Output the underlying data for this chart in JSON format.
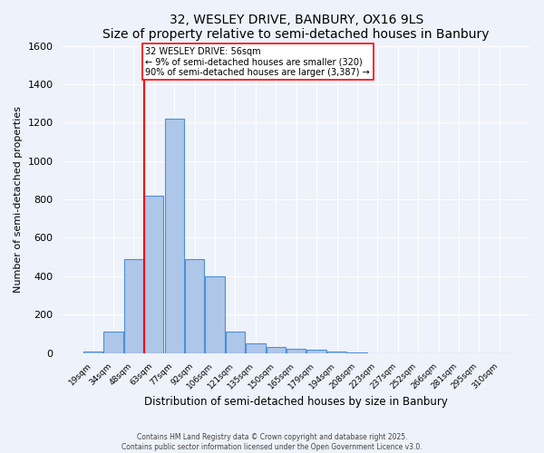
{
  "title": "32, WESLEY DRIVE, BANBURY, OX16 9LS",
  "subtitle": "Size of property relative to semi-detached houses in Banbury",
  "xlabel": "Distribution of semi-detached houses by size in Banbury",
  "ylabel": "Number of semi-detached properties",
  "bin_labels": [
    "19sqm",
    "34sqm",
    "48sqm",
    "63sqm",
    "77sqm",
    "92sqm",
    "106sqm",
    "121sqm",
    "135sqm",
    "150sqm",
    "165sqm",
    "179sqm",
    "194sqm",
    "208sqm",
    "223sqm",
    "237sqm",
    "252sqm",
    "266sqm",
    "281sqm",
    "295sqm",
    "310sqm"
  ],
  "bar_values": [
    10,
    110,
    490,
    820,
    1220,
    490,
    400,
    110,
    50,
    30,
    20,
    15,
    10,
    5,
    0,
    0,
    0,
    0,
    0,
    0,
    0
  ],
  "bar_color": "#aec6e8",
  "bar_edge_color": "#4a90d9",
  "annotation_text": "32 WESLEY DRIVE: 56sqm\n← 9% of semi-detached houses are smaller (320)\n90% of semi-detached houses are larger (3,387) →",
  "footer_line1": "Contains HM Land Registry data © Crown copyright and database right 2025.",
  "footer_line2": "Contains public sector information licensed under the Open Government Licence v3.0.",
  "background_color": "#eef2fa",
  "plot_bg_color": "#eef2fa",
  "ylim": [
    0,
    1600
  ],
  "yticks": [
    0,
    200,
    400,
    600,
    800,
    1000,
    1200,
    1400,
    1600
  ],
  "red_line_x": 2.5
}
